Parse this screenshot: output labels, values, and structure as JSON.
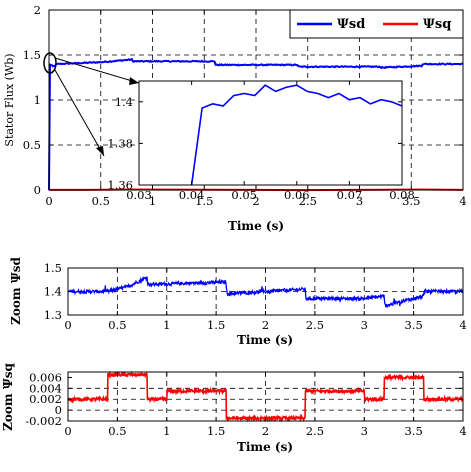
{
  "chart_data": [
    {
      "type": "line",
      "xlabel": "Time (s)",
      "ylabel": "Stator Flux (Wb)",
      "xlim": [
        0,
        4
      ],
      "ylim": [
        0,
        2
      ],
      "xticks": [
        "0",
        "0.5",
        "1",
        "1.5",
        "2",
        "2.5",
        "3",
        "3.5",
        "4"
      ],
      "yticks": [
        "0",
        "0.5",
        "1",
        "1.5",
        "2"
      ],
      "grid": true,
      "legend_position": "top-right",
      "series": [
        {
          "name": "Ψsd",
          "color": "#0000ff",
          "x": [
            0,
            0.005,
            0.04,
            0.08,
            0.5,
            0.8,
            0.81,
            1.6,
            1.61,
            2.4,
            2.41,
            3.2,
            3.21,
            3.6,
            3.61,
            4.0
          ],
          "y": [
            0,
            1.4,
            1.37,
            1.4,
            1.42,
            1.45,
            1.43,
            1.43,
            1.39,
            1.39,
            1.37,
            1.37,
            1.36,
            1.38,
            1.4,
            1.4
          ]
        },
        {
          "name": "Ψsq",
          "color": "#ff0000",
          "x": [
            0,
            0.4,
            0.8,
            1.6,
            2.4,
            3.2,
            3.6,
            4.0
          ],
          "y": [
            0.002,
            0.002,
            0.006,
            0.003,
            -0.001,
            0.003,
            0.006,
            0.002
          ]
        }
      ],
      "inset": {
        "xlim": [
          0.03,
          0.08
        ],
        "ylim": [
          1.36,
          1.41
        ],
        "xticks": [
          "0.03",
          "0.04",
          "0.05",
          "0.06",
          "0.07",
          "0.08"
        ],
        "yticks": [
          "1.36",
          "1.38",
          "1.4"
        ],
        "x": [
          0.04,
          0.042,
          0.044,
          0.046,
          0.048,
          0.05,
          0.052,
          0.054,
          0.056,
          0.058,
          0.06,
          0.062,
          0.064,
          0.066,
          0.068,
          0.07,
          0.072,
          0.074,
          0.076,
          0.078,
          0.08
        ],
        "y": [
          1.36,
          1.397,
          1.399,
          1.398,
          1.403,
          1.404,
          1.403,
          1.408,
          1.405,
          1.407,
          1.408,
          1.405,
          1.404,
          1.402,
          1.404,
          1.401,
          1.402,
          1.399,
          1.401,
          1.4,
          1.398
        ]
      }
    },
    {
      "type": "line",
      "xlabel": "Time (s)",
      "ylabel": "Zoom Ψsd",
      "xlim": [
        0,
        4
      ],
      "ylim": [
        1.3,
        1.5
      ],
      "xticks": [
        "0",
        "0.5",
        "1",
        "1.5",
        "2",
        "2.5",
        "3",
        "3.5",
        "4"
      ],
      "yticks": [
        "1.3",
        "1.4",
        "1.5"
      ],
      "grid": true,
      "series": [
        {
          "color": "#0000ff",
          "x": [
            0,
            0.4,
            0.6,
            0.75,
            0.8,
            0.81,
            1.6,
            1.61,
            2.4,
            2.41,
            3.0,
            3.2,
            3.21,
            3.4,
            3.6,
            3.61,
            4.0
          ],
          "y": [
            1.4,
            1.4,
            1.42,
            1.45,
            1.46,
            1.43,
            1.44,
            1.39,
            1.41,
            1.37,
            1.37,
            1.38,
            1.34,
            1.36,
            1.38,
            1.4,
            1.4
          ]
        }
      ]
    },
    {
      "type": "line",
      "xlabel": "Time (s)",
      "ylabel": "Zoom Ψsq",
      "xlim": [
        0,
        4
      ],
      "ylim": [
        -0.002,
        0.007
      ],
      "xticks": [
        "0",
        "0.5",
        "1",
        "1.5",
        "2",
        "2.5",
        "3",
        "3.5",
        "4"
      ],
      "yticks": [
        "-0.002",
        "0",
        "0.002",
        "0.004",
        "0.006"
      ],
      "grid": true,
      "series": [
        {
          "color": "#ff0000",
          "x": [
            0,
            0.4,
            0.4,
            0.8,
            0.8,
            1.0,
            1.0,
            1.6,
            1.6,
            2.4,
            2.4,
            3.0,
            3.0,
            3.2,
            3.2,
            3.6,
            3.6,
            4.0
          ],
          "y": [
            0.002,
            0.002,
            0.0065,
            0.0065,
            0.002,
            0.002,
            0.0035,
            0.0035,
            -0.0015,
            -0.0015,
            0.0035,
            0.0035,
            0.002,
            0.002,
            0.006,
            0.006,
            0.002,
            0.002
          ]
        }
      ]
    }
  ]
}
